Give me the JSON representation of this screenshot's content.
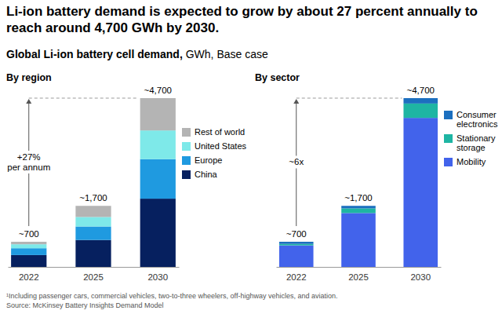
{
  "title": "Li-ion battery demand is expected to grow by about 27 percent annually to reach around 4,700 GWh by 2030.",
  "subtitle": "Global Li-ion battery cell demand, GWh, Base case",
  "footnote": "¹Including passenger cars, commercial vehicles, two-to-three wheelers, off-highway vehicles, and aviation.",
  "source": "Source: McKinsey Battery Insights Demand Model",
  "chart_data": [
    {
      "type": "bar",
      "title": "By region",
      "categories": [
        "2022",
        "2025",
        "2030"
      ],
      "series": [
        {
          "name": "China",
          "color": "#06205f",
          "values": [
            330,
            750,
            1900
          ]
        },
        {
          "name": "Europe",
          "color": "#1f9ae0",
          "values": [
            190,
            375,
            1100
          ]
        },
        {
          "name": "United States",
          "color": "#7ee9e9",
          "values": [
            110,
            265,
            800
          ]
        },
        {
          "name": "Rest of world",
          "color": "#b4b4b4",
          "values": [
            70,
            310,
            900
          ]
        }
      ],
      "stacked": true,
      "ylim": [
        0,
        4700
      ],
      "tick_labels": "x",
      "legend": "right",
      "totals": [
        700,
        1700,
        4700
      ],
      "total_labels": [
        "~700",
        "~1,700",
        "~4,700"
      ],
      "annotation": [
        "+27%",
        "per annum"
      ]
    },
    {
      "type": "bar",
      "title": "By sector",
      "categories": [
        "2022",
        "2025",
        "2030"
      ],
      "series": [
        {
          "name": "Mobility",
          "color": "#4263eb",
          "values": [
            600,
            1500,
            4150
          ]
        },
        {
          "name": "Stationary storage",
          "color": "#1eb5a3",
          "values": [
            40,
            130,
            400
          ]
        },
        {
          "name": "Consumer electronics",
          "color": "#1c6fbf",
          "values": [
            60,
            70,
            150
          ]
        }
      ],
      "stacked": true,
      "ylim": [
        0,
        4700
      ],
      "tick_labels": "x",
      "legend": "right",
      "totals": [
        700,
        1700,
        4700
      ],
      "total_labels": [
        "~700",
        "~1,700",
        "~4,700"
      ],
      "annotation": [
        "~6x"
      ]
    }
  ]
}
